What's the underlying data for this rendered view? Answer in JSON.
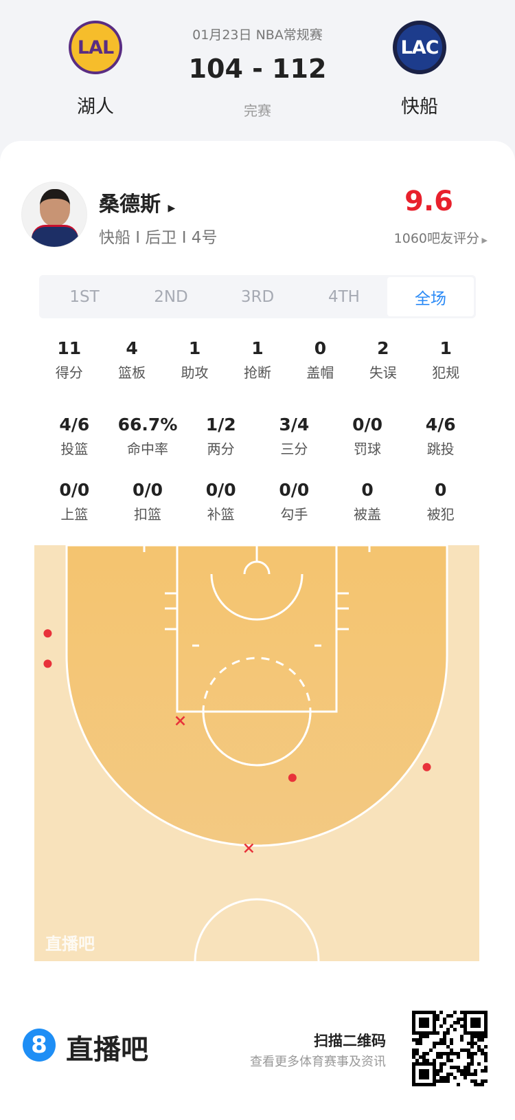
{
  "match": {
    "date_league": "01月23日 NBA常规赛",
    "score": "104 - 112",
    "status": "完赛",
    "home": {
      "abbr": "LAL",
      "name": "湖人",
      "color": "#5a2d82"
    },
    "away": {
      "abbr": "LAC",
      "name": "快船",
      "color": "#1d3c8c"
    }
  },
  "player": {
    "name": "桑德斯",
    "info": "快船 I 后卫 I 4号",
    "rating": "9.6",
    "rating_count": "1060吧友评分",
    "rating_color": "#e8202c"
  },
  "tabs": [
    {
      "label": "1ST"
    },
    {
      "label": "2ND"
    },
    {
      "label": "3RD"
    },
    {
      "label": "4TH"
    },
    {
      "label": "全场",
      "active": true
    }
  ],
  "stats": [
    [
      {
        "v": "11",
        "l": "得分"
      },
      {
        "v": "4",
        "l": "篮板"
      },
      {
        "v": "1",
        "l": "助攻"
      },
      {
        "v": "1",
        "l": "抢断"
      },
      {
        "v": "0",
        "l": "盖帽"
      },
      {
        "v": "2",
        "l": "失误"
      },
      {
        "v": "1",
        "l": "犯规"
      }
    ],
    [
      {
        "v": "4/6",
        "l": "投篮"
      },
      {
        "v": "66.7%",
        "l": "命中率"
      },
      {
        "v": "1/2",
        "l": "两分"
      },
      {
        "v": "3/4",
        "l": "三分"
      },
      {
        "v": "0/0",
        "l": "罚球"
      },
      {
        "v": "4/6",
        "l": "跳投"
      }
    ],
    [
      {
        "v": "0/0",
        "l": "上篮"
      },
      {
        "v": "0/0",
        "l": "扣篮"
      },
      {
        "v": "0/0",
        "l": "补篮"
      },
      {
        "v": "0/0",
        "l": "勾手"
      },
      {
        "v": "0",
        "l": "被盖"
      },
      {
        "v": "0",
        "l": "被犯"
      }
    ]
  ],
  "shot_chart": {
    "watermark": "直播吧",
    "shots": [
      {
        "x": -23.5,
        "y": 9.9,
        "made": true
      },
      {
        "x": -23.5,
        "y": 13.3,
        "made": true
      },
      {
        "x": 4.0,
        "y": 26.1,
        "made": true
      },
      {
        "x": 19.1,
        "y": 24.9,
        "made": true
      },
      {
        "x": -8.6,
        "y": 19.7,
        "made": false
      },
      {
        "x": -0.9,
        "y": 34.0,
        "made": false
      }
    ],
    "made_color": "#e8323a",
    "miss_color": "#e8323a"
  },
  "footer": {
    "brand": "直播吧",
    "brand_icon": "8",
    "scan": "扫描二维码",
    "desc": "查看更多体育赛事及资讯"
  }
}
